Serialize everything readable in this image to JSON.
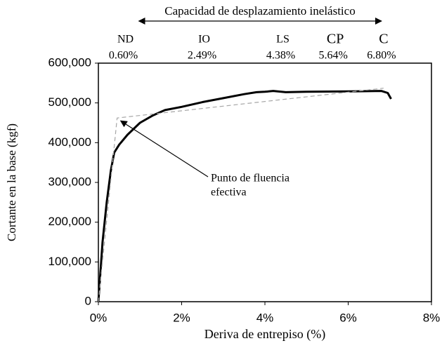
{
  "chart_data": {
    "type": "line",
    "xlabel": "Deriva de entrepiso (%)",
    "ylabel": "Cortante en la base (kgf)",
    "xlim": [
      0,
      8
    ],
    "ylim": [
      0,
      600000
    ],
    "xticks": [
      {
        "value": 0,
        "label": "0%"
      },
      {
        "value": 2,
        "label": "2%"
      },
      {
        "value": 4,
        "label": "4%"
      },
      {
        "value": 6,
        "label": "6%"
      },
      {
        "value": 8,
        "label": "8%"
      }
    ],
    "yticks": [
      {
        "value": 0,
        "label": "0"
      },
      {
        "value": 100000,
        "label": "100,000"
      },
      {
        "value": 200000,
        "label": "200,000"
      },
      {
        "value": 300000,
        "label": "300,000"
      },
      {
        "value": 400000,
        "label": "400,000"
      },
      {
        "value": 500000,
        "label": "500,000"
      },
      {
        "value": 600000,
        "label": "600,000"
      }
    ],
    "series": [
      {
        "color": "#000000",
        "x": [
          0,
          0.1,
          0.2,
          0.3,
          0.38,
          0.5,
          0.7,
          1.0,
          1.3,
          1.6,
          2.0,
          2.5,
          3.0,
          3.5,
          3.8,
          4.0,
          4.2,
          4.5,
          5.0,
          6.0,
          6.8,
          6.95,
          7.03
        ],
        "values": [
          0,
          150000,
          250000,
          330000,
          375000,
          395000,
          420000,
          450000,
          468000,
          482000,
          490000,
          502000,
          512000,
          522000,
          527000,
          528000,
          530000,
          527000,
          528000,
          529000,
          530000,
          525000,
          510000
        ]
      },
      {
        "color": "#a6a6a6",
        "dashed": true,
        "x": [
          0,
          0.45,
          6.85
        ],
        "values": [
          0,
          462000,
          537000
        ]
      }
    ],
    "annotation": {
      "text": [
        "Punto de fluencia",
        "efectiva"
      ],
      "x": 0.5,
      "y": 462000
    },
    "range_label": "Capacidad de desplazamiento inelástico",
    "performance_levels": {
      "names": [
        "ND",
        "IO",
        "LS",
        "CP",
        "C"
      ],
      "values": [
        0.6,
        2.49,
        4.38,
        5.64,
        6.8
      ],
      "value_labels": [
        "0.60%",
        "2.49%",
        "4.38%",
        "5.64%",
        "6.80%"
      ]
    }
  }
}
